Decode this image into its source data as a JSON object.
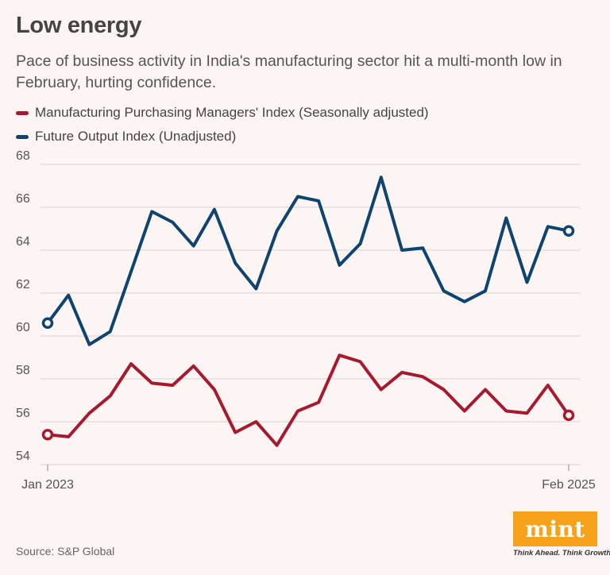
{
  "header": {
    "title": "Low energy",
    "subtitle": "Pace of business activity in India's manufacturing sector hit a multi-month low in February, hurting confidence."
  },
  "footer": {
    "source": "Source: S&P Global",
    "logo_text": "mint",
    "logo_tagline": "Think Ahead. Think Growth.",
    "logo_color": "#f7a21b"
  },
  "chart_data": {
    "type": "line",
    "title": "Low energy",
    "x_tick_labels": [
      "Jan 2023",
      "Feb 2025"
    ],
    "x": [
      "2023-01",
      "2023-02",
      "2023-03",
      "2023-04",
      "2023-05",
      "2023-06",
      "2023-07",
      "2023-08",
      "2023-09",
      "2023-10",
      "2023-11",
      "2023-12",
      "2024-01",
      "2024-02",
      "2024-03",
      "2024-04",
      "2024-05",
      "2024-06",
      "2024-07",
      "2024-08",
      "2024-09",
      "2024-10",
      "2024-11",
      "2024-12",
      "2025-01",
      "2025-02"
    ],
    "ylim": [
      54,
      68
    ],
    "y_ticks": [
      54,
      56,
      58,
      60,
      62,
      64,
      66,
      68
    ],
    "grid": true,
    "legend_position": "top-left",
    "series": [
      {
        "name": "Manufacturing Purchasing Managers' Index (Seasonally adjusted)",
        "color": "#a6192e",
        "values": [
          55.4,
          55.3,
          56.4,
          57.2,
          58.7,
          57.8,
          57.7,
          58.6,
          57.5,
          55.5,
          56.0,
          54.9,
          56.5,
          56.9,
          59.1,
          58.8,
          57.5,
          58.3,
          58.1,
          57.5,
          56.5,
          57.5,
          56.5,
          56.4,
          57.7,
          56.3
        ]
      },
      {
        "name": "Future Output Index (Unadjusted)",
        "color": "#0f4470",
        "values": [
          60.6,
          61.9,
          59.6,
          60.2,
          63.0,
          65.8,
          65.3,
          64.2,
          65.9,
          63.4,
          62.2,
          64.9,
          66.5,
          66.3,
          63.3,
          64.3,
          67.4,
          64.0,
          64.1,
          62.1,
          61.6,
          62.1,
          65.5,
          62.5,
          65.1,
          64.9
        ]
      }
    ]
  }
}
